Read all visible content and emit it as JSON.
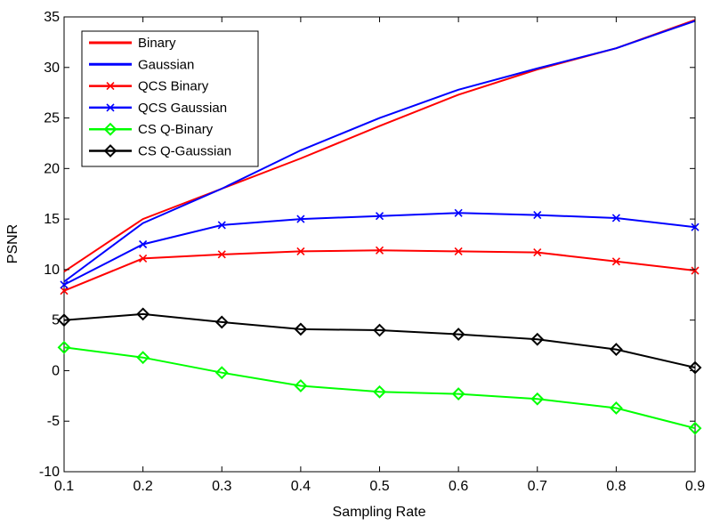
{
  "chart_data": {
    "type": "line",
    "title": "",
    "xlabel": "Sampling Rate",
    "ylabel": "PSNR",
    "xlim": [
      0.1,
      0.9
    ],
    "ylim": [
      -10,
      35
    ],
    "x": [
      0.1,
      0.2,
      0.3,
      0.4,
      0.5,
      0.6,
      0.7,
      0.8,
      0.9
    ],
    "x_ticks": [
      "0.1",
      "0.2",
      "0.3",
      "0.4",
      "0.5",
      "0.6",
      "0.7",
      "0.8",
      "0.9"
    ],
    "y_ticks": [
      "-10",
      "-5",
      "0",
      "5",
      "10",
      "15",
      "20",
      "25",
      "30",
      "35"
    ],
    "y_tick_values": [
      -10,
      -5,
      0,
      5,
      10,
      15,
      20,
      25,
      30,
      35
    ],
    "grid": false,
    "legend_position": "top-left",
    "series": [
      {
        "name": "Binary",
        "color": "#ff0000",
        "marker": "none",
        "values": [
          9.8,
          15.0,
          18.0,
          21.0,
          24.2,
          27.3,
          29.8,
          31.9,
          34.7
        ]
      },
      {
        "name": "Gaussian",
        "color": "#0000ff",
        "marker": "none",
        "values": [
          8.8,
          14.6,
          18.0,
          21.8,
          25.0,
          27.8,
          29.9,
          31.9,
          34.6
        ]
      },
      {
        "name": "QCS Binary",
        "color": "#ff0000",
        "marker": "x",
        "values": [
          7.9,
          11.1,
          11.5,
          11.8,
          11.9,
          11.8,
          11.7,
          10.8,
          9.9
        ]
      },
      {
        "name": "QCS Gaussian",
        "color": "#0000ff",
        "marker": "x",
        "values": [
          8.5,
          12.5,
          14.4,
          15.0,
          15.3,
          15.6,
          15.4,
          15.1,
          14.2
        ]
      },
      {
        "name": "CS Q-Binary",
        "color": "#00ff00",
        "marker": "diamond",
        "values": [
          2.3,
          1.3,
          -0.2,
          -1.5,
          -2.1,
          -2.3,
          -2.8,
          -3.7,
          -5.7
        ]
      },
      {
        "name": "CS Q-Gaussian",
        "color": "#000000",
        "marker": "diamond",
        "values": [
          5.0,
          5.6,
          4.8,
          4.1,
          4.0,
          3.6,
          3.1,
          2.1,
          0.3
        ]
      }
    ]
  }
}
